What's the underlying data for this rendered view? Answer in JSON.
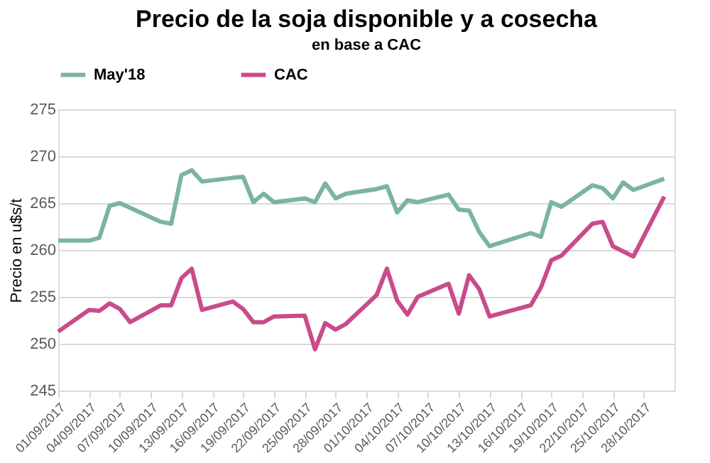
{
  "chart_data": {
    "type": "line",
    "title": "Precio de la soja disponible y a cosecha",
    "subtitle": "en base a CAC",
    "ylabel": "Precio en u$s/t",
    "x": [
      "2017-09-01",
      "2017-09-04",
      "2017-09-05",
      "2017-09-06",
      "2017-09-07",
      "2017-09-11",
      "2017-09-12",
      "2017-09-13",
      "2017-09-14",
      "2017-09-15",
      "2017-09-18",
      "2017-09-19",
      "2017-09-20",
      "2017-09-21",
      "2017-09-22",
      "2017-09-25",
      "2017-09-26",
      "2017-09-27",
      "2017-09-28",
      "2017-09-29",
      "2017-10-02",
      "2017-10-03",
      "2017-10-04",
      "2017-10-05",
      "2017-10-06",
      "2017-10-09",
      "2017-10-10",
      "2017-10-11",
      "2017-10-12",
      "2017-10-13",
      "2017-10-17",
      "2017-10-18",
      "2017-10-19",
      "2017-10-20",
      "2017-10-23",
      "2017-10-24",
      "2017-10-25",
      "2017-10-26",
      "2017-10-27",
      "2017-10-30"
    ],
    "series": [
      {
        "name": "May'18",
        "color": "#7ab59c",
        "values": [
          261.0,
          261.0,
          261.3,
          264.7,
          265.0,
          263.0,
          262.8,
          268.0,
          268.5,
          267.3,
          267.7,
          267.8,
          265.1,
          266.0,
          265.1,
          265.5,
          265.1,
          267.1,
          265.5,
          266.0,
          266.5,
          266.8,
          264.0,
          265.3,
          265.1,
          265.9,
          264.3,
          264.2,
          261.9,
          260.4,
          261.8,
          261.4,
          265.1,
          264.6,
          266.9,
          266.6,
          265.5,
          267.2,
          266.4,
          267.6
        ]
      },
      {
        "name": "CAC",
        "color": "#c94b8c",
        "x": [
          "2017-09-01",
          "2017-09-04",
          "2017-09-05",
          "2017-09-06",
          "2017-09-07",
          "2017-09-08",
          "2017-09-11",
          "2017-09-12",
          "2017-09-13",
          "2017-09-14",
          "2017-09-15",
          "2017-09-18",
          "2017-09-19",
          "2017-09-20",
          "2017-09-21",
          "2017-09-22",
          "2017-09-25",
          "2017-09-26",
          "2017-09-27",
          "2017-09-28",
          "2017-09-29",
          "2017-10-02",
          "2017-10-03",
          "2017-10-04",
          "2017-10-05",
          "2017-10-06",
          "2017-10-09",
          "2017-10-10",
          "2017-10-11",
          "2017-10-12",
          "2017-10-13",
          "2017-10-17",
          "2017-10-18",
          "2017-10-19",
          "2017-10-20",
          "2017-10-23",
          "2017-10-24",
          "2017-10-25",
          "2017-10-27",
          "2017-10-30"
        ],
        "values": [
          251.3,
          253.6,
          253.5,
          254.3,
          253.7,
          252.3,
          254.1,
          254.1,
          257.0,
          258.0,
          253.6,
          254.5,
          253.7,
          252.3,
          252.3,
          252.9,
          253.0,
          249.4,
          252.2,
          251.5,
          252.1,
          255.2,
          258.0,
          254.6,
          253.1,
          255.0,
          256.4,
          253.2,
          257.3,
          255.8,
          252.9,
          254.1,
          256.0,
          258.9,
          259.4,
          262.8,
          263.0,
          260.4,
          259.3,
          265.7
        ]
      }
    ],
    "xlim": [
      "2017-09-01",
      "2017-10-31"
    ],
    "xticks": [
      {
        "value": "2017-09-01",
        "label": "01/09/2017"
      },
      {
        "value": "2017-09-04",
        "label": "04/09/2017"
      },
      {
        "value": "2017-09-07",
        "label": "07/09/2017"
      },
      {
        "value": "2017-09-10",
        "label": "10/09/2017"
      },
      {
        "value": "2017-09-13",
        "label": "13/09/2017"
      },
      {
        "value": "2017-09-16",
        "label": "16/09/2017"
      },
      {
        "value": "2017-09-19",
        "label": "19/09/2017"
      },
      {
        "value": "2017-09-22",
        "label": "22/09/2017"
      },
      {
        "value": "2017-09-25",
        "label": "25/09/2017"
      },
      {
        "value": "2017-09-28",
        "label": "28/09/2017"
      },
      {
        "value": "2017-10-01",
        "label": "01/10/2017"
      },
      {
        "value": "2017-10-04",
        "label": "04/10/2017"
      },
      {
        "value": "2017-10-07",
        "label": "07/10/2017"
      },
      {
        "value": "2017-10-10",
        "label": "10/10/2017"
      },
      {
        "value": "2017-10-13",
        "label": "13/10/2017"
      },
      {
        "value": "2017-10-16",
        "label": "16/10/2017"
      },
      {
        "value": "2017-10-19",
        "label": "19/10/2017"
      },
      {
        "value": "2017-10-22",
        "label": "22/10/2017"
      },
      {
        "value": "2017-10-25",
        "label": "25/10/2017"
      },
      {
        "value": "2017-10-28",
        "label": "28/10/2017"
      }
    ],
    "ylim": [
      245,
      275
    ],
    "yticks": [
      245,
      250,
      255,
      260,
      265,
      270,
      275
    ],
    "grid": "y",
    "legend": "top",
    "marker": "none",
    "line_style": "solid"
  }
}
